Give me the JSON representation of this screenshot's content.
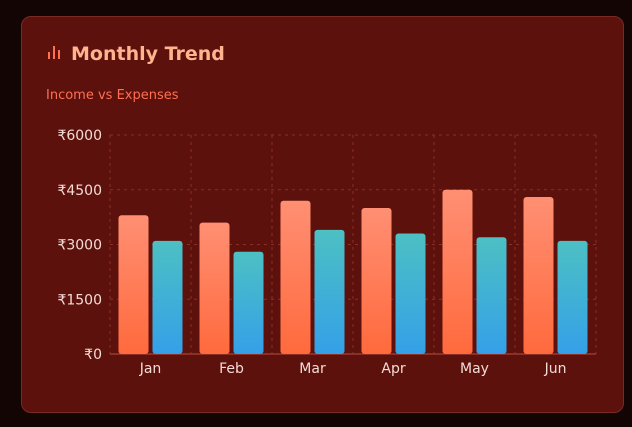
{
  "card": {
    "title": "Monthly Trend",
    "subtitle": "Income vs Expenses",
    "icon": "bar-chart-icon"
  },
  "colors": {
    "card_bg": "#5c110d",
    "title": "#ffb38f",
    "subtitle": "#ff6f52",
    "income_top": "#ff8f73",
    "income_bottom": "#ff6a3d",
    "expense_top": "#4cc0c3",
    "expense_bottom": "#35a0e8",
    "grid": "#8a2f25"
  },
  "chart_data": {
    "type": "bar",
    "title": "Monthly Trend",
    "subtitle": "Income vs Expenses",
    "categories": [
      "Jan",
      "Feb",
      "Mar",
      "Apr",
      "May",
      "Jun"
    ],
    "series": [
      {
        "values": [
          3800,
          3600,
          4200,
          4000,
          4500,
          4300
        ]
      },
      {
        "values": [
          3100,
          2800,
          3400,
          3300,
          3200,
          3100
        ]
      }
    ],
    "ylim": [
      0,
      6000
    ],
    "y_ticks": [
      0,
      1500,
      3000,
      4500,
      6000
    ],
    "y_tick_labels": [
      "₹0",
      "₹1500",
      "₹3000",
      "₹4500",
      "₹6000"
    ],
    "grid": true,
    "legend": "none"
  }
}
